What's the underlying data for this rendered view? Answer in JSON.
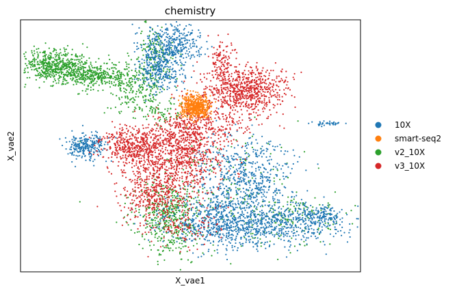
{
  "chart_data": {
    "type": "scatter",
    "title": "chemistry",
    "xlabel": "X_vae1",
    "ylabel": "X_vae2",
    "xlim": [
      0,
      100
    ],
    "ylim": [
      0,
      100
    ],
    "xticks": [],
    "yticks": [],
    "grid": false,
    "legend_position": "right",
    "legend": [
      {
        "name": "10X",
        "color": "#1f77b4"
      },
      {
        "name": "smart-seq2",
        "color": "#ff7f0e"
      },
      {
        "name": "v2_10X",
        "color": "#2ca02c"
      },
      {
        "name": "v3_10X",
        "color": "#d62728"
      }
    ],
    "series": [
      {
        "name": "v2_10X",
        "color": "#2ca02c",
        "clusters": [
          {
            "x": 10,
            "y": 82,
            "sx": 4.5,
            "sy": 3.2,
            "n": 520
          },
          {
            "x": 22,
            "y": 78,
            "sx": 6.5,
            "sy": 2.6,
            "n": 420
          },
          {
            "x": 34,
            "y": 72,
            "sx": 3.5,
            "sy": 4.5,
            "n": 160
          },
          {
            "x": 40,
            "y": 86,
            "sx": 3.0,
            "sy": 6.5,
            "n": 160
          },
          {
            "x": 43,
            "y": 22,
            "sx": 4.5,
            "sy": 7.0,
            "n": 420
          },
          {
            "x": 56,
            "y": 30,
            "sx": 13.0,
            "sy": 15.0,
            "n": 220
          },
          {
            "x": 80,
            "y": 22,
            "sx": 9.0,
            "sy": 5.0,
            "n": 140
          },
          {
            "x": 40,
            "y": 64,
            "sx": 4.5,
            "sy": 3.0,
            "n": 80
          }
        ]
      },
      {
        "name": "10X",
        "color": "#1f77b4",
        "clusters": [
          {
            "x": 45,
            "y": 90,
            "sx": 4.5,
            "sy": 4.0,
            "n": 360
          },
          {
            "x": 41,
            "y": 80,
            "sx": 3.2,
            "sy": 4.5,
            "n": 280
          },
          {
            "x": 19,
            "y": 50,
            "sx": 3.2,
            "sy": 2.6,
            "n": 260
          },
          {
            "x": 66,
            "y": 38,
            "sx": 7.5,
            "sy": 8.0,
            "n": 560
          },
          {
            "x": 61,
            "y": 20,
            "sx": 9.5,
            "sy": 5.5,
            "n": 800
          },
          {
            "x": 80,
            "y": 19,
            "sx": 8.5,
            "sy": 4.0,
            "n": 320
          },
          {
            "x": 88,
            "y": 22,
            "sx": 3.5,
            "sy": 2.2,
            "n": 120
          },
          {
            "x": 91,
            "y": 59,
            "sx": 2.0,
            "sy": 0.5,
            "n": 40
          }
        ]
      },
      {
        "name": "v3_10X",
        "color": "#d62728",
        "clusters": [
          {
            "x": 66,
            "y": 72,
            "sx": 6.0,
            "sy": 5.0,
            "n": 760
          },
          {
            "x": 33,
            "y": 50,
            "sx": 4.5,
            "sy": 3.5,
            "n": 420
          },
          {
            "x": 47,
            "y": 52,
            "sx": 5.5,
            "sy": 5.5,
            "n": 420
          },
          {
            "x": 40,
            "y": 35,
            "sx": 5.5,
            "sy": 8.0,
            "n": 640
          },
          {
            "x": 53,
            "y": 58,
            "sx": 7.0,
            "sy": 5.0,
            "n": 260
          },
          {
            "x": 59,
            "y": 84,
            "sx": 1.8,
            "sy": 4.0,
            "n": 100
          },
          {
            "x": 51,
            "y": 42,
            "sx": 6.0,
            "sy": 6.0,
            "n": 200
          },
          {
            "x": 49,
            "y": 18,
            "sx": 5.0,
            "sy": 4.0,
            "n": 100
          }
        ]
      },
      {
        "name": "smart-seq2",
        "color": "#ff7f0e",
        "clusters": [
          {
            "x": 51.5,
            "y": 65.5,
            "sx": 2.0,
            "sy": 2.4,
            "n": 520
          }
        ]
      }
    ]
  }
}
